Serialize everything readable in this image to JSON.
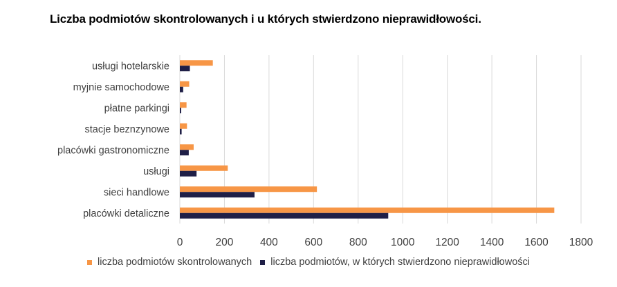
{
  "title": "Liczba podmiotów skontrolowanych i u których stwierdzono nieprawidłowości.",
  "colors": {
    "controlled": "#F79646",
    "irregular": "#1F1F47",
    "grid": "#D9D9D9"
  },
  "chart_data": {
    "type": "bar",
    "orientation": "horizontal",
    "title": "Liczba podmiotów skontrolowanych i u których stwierdzono nieprawidłowości.",
    "categories": [
      "placówki detaliczne",
      "sieci handlowe",
      "usługi",
      "placówki gastronomiczne",
      "stacje beznzynowe",
      "płatne parkingi",
      "myjnie samochodowe",
      "usługi hotelarskie"
    ],
    "series": [
      {
        "name": "liczba podmiotów skontrolowanych",
        "values": [
          1680,
          615,
          215,
          62,
          32,
          30,
          42,
          148
        ]
      },
      {
        "name": "liczba podmiotów, w których stwierdzono nieprawidłowości",
        "values": [
          935,
          335,
          75,
          40,
          8,
          6,
          15,
          45
        ]
      }
    ],
    "xlim": [
      0,
      1800
    ],
    "xticks": [
      "0",
      "200",
      "400",
      "600",
      "800",
      "1000",
      "1200",
      "1400",
      "1600",
      "1800"
    ],
    "grid": "vertical",
    "legend": "bottom"
  }
}
